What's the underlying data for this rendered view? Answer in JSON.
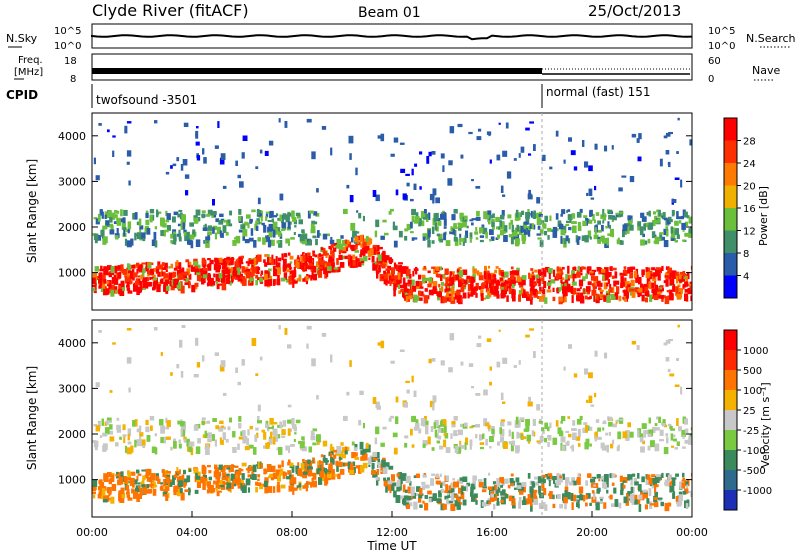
{
  "header": {
    "station": "Clyde River (fitACF)",
    "beam": "Beam 01",
    "date": "25/Oct/2013"
  },
  "labels": {
    "nsky": "N.Sky",
    "nsearch": "N.Search",
    "freq_line1": "Freq.",
    "freq_line2": "[MHz]",
    "nave": "Nave",
    "cpid": "CPID",
    "tick_1e5": "10^5",
    "tick_1e0": "10^0",
    "tick_18": "18",
    "tick_8": "8",
    "tick_60": "60",
    "tick_0": "0"
  },
  "cpid": [
    {
      "start_hour": 0,
      "label": "twofsound -3501"
    },
    {
      "start_hour": 18.0,
      "label": "normal (fast) 151"
    }
  ],
  "chart_data": [
    {
      "type": "heatmap",
      "name": "power",
      "xlabel": "",
      "ylabel": "Slant Range [km]",
      "xlim": [
        0,
        24
      ],
      "ylim": [
        180,
        4500
      ],
      "yticks": [
        1000,
        2000,
        3000,
        4000
      ],
      "colorbar": {
        "title": "Power [dB]",
        "ticks": [
          "4",
          "8",
          "12",
          "16",
          "20",
          "24",
          "28"
        ],
        "colors": [
          "#0000ff",
          "#2a5caa",
          "#3f8f6b",
          "#6bbf3a",
          "#f0b000",
          "#ff7a00",
          "#ff3000",
          "#ff0000"
        ]
      }
    },
    {
      "type": "heatmap",
      "name": "velocity",
      "xlabel": "Time UT",
      "ylabel": "Slant Range [km]",
      "xlim": [
        0,
        24
      ],
      "ylim": [
        180,
        4500
      ],
      "yticks": [
        1000,
        2000,
        3000,
        4000
      ],
      "xticks": [
        "00:00",
        "04:00",
        "08:00",
        "12:00",
        "16:00",
        "20:00",
        "00:00"
      ],
      "colorbar": {
        "title": "Velocity [m s⁻¹]",
        "ticks": [
          "1000",
          "500",
          "100",
          "25",
          "-25",
          "-100",
          "-500",
          "-1000"
        ],
        "colors": [
          "#1d2fb5",
          "#2d6a8e",
          "#3a8a5c",
          "#7ac943",
          "#c8c8c8",
          "#f5b100",
          "#ff7300",
          "#ff2a00",
          "#ff0000"
        ]
      }
    }
  ]
}
